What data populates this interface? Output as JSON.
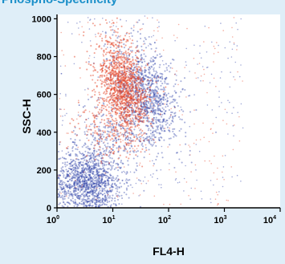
{
  "chart_data": {
    "type": "scatter",
    "title": "Phospho-Specificity",
    "xlabel": "FL4-H",
    "ylabel": "SSC-H",
    "xscale": "log",
    "xlim": [
      1,
      10000
    ],
    "ylim": [
      0,
      1023
    ],
    "x_ticks": [
      {
        "base": "10",
        "exp": "0",
        "value": 1
      },
      {
        "base": "10",
        "exp": "1",
        "value": 10
      },
      {
        "base": "10",
        "exp": "2",
        "value": 100
      },
      {
        "base": "10",
        "exp": "3",
        "value": 1000
      },
      {
        "base": "10",
        "exp": "4",
        "value": 10000
      }
    ],
    "y_ticks": [
      "0",
      "200",
      "400",
      "600",
      "800",
      "1000"
    ],
    "grid": false,
    "series": [
      {
        "color": "#3344aa",
        "clusters": [
          {
            "center_x": 3.5,
            "center_y": 130,
            "count": 1400
          },
          {
            "center_x": 40,
            "center_y": 600,
            "count": 1000
          },
          {
            "center_x": 12,
            "center_y": 390,
            "count": 300
          }
        ]
      },
      {
        "color": "#e64a2e",
        "clusters": [
          {
            "center_x": 14,
            "center_y": 670,
            "count": 1000
          },
          {
            "center_x": 9,
            "center_y": 420,
            "count": 200
          },
          {
            "center_x": 20,
            "center_y": 590,
            "count": 250
          }
        ]
      }
    ]
  }
}
